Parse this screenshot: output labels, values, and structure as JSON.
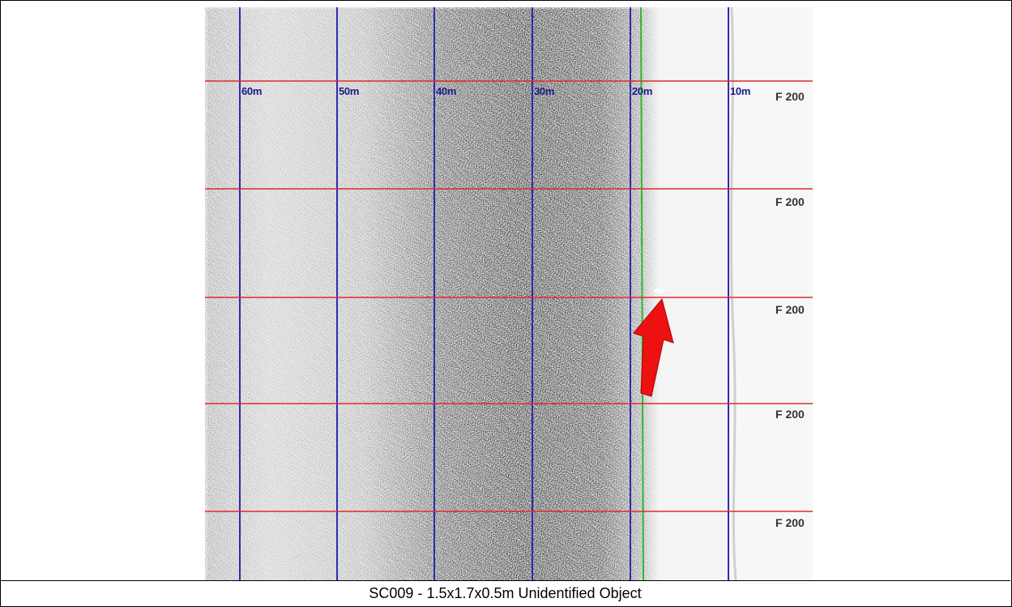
{
  "image": {
    "range_labels": [
      "60m",
      "50m",
      "40m",
      "30m",
      "20m",
      "10m"
    ],
    "fix_labels": [
      "F 200",
      "F 200",
      "F 200",
      "F 200",
      "F 200"
    ],
    "colors": {
      "range_line": "#2b2bb0",
      "fix_line": "#e02a2a",
      "nadir_line": "#2fb82f",
      "arrow": "#ee1111"
    },
    "target_marker": "red-arrow"
  },
  "caption": "SC009 - 1.5x1.7x0.5m Unidentified Object"
}
